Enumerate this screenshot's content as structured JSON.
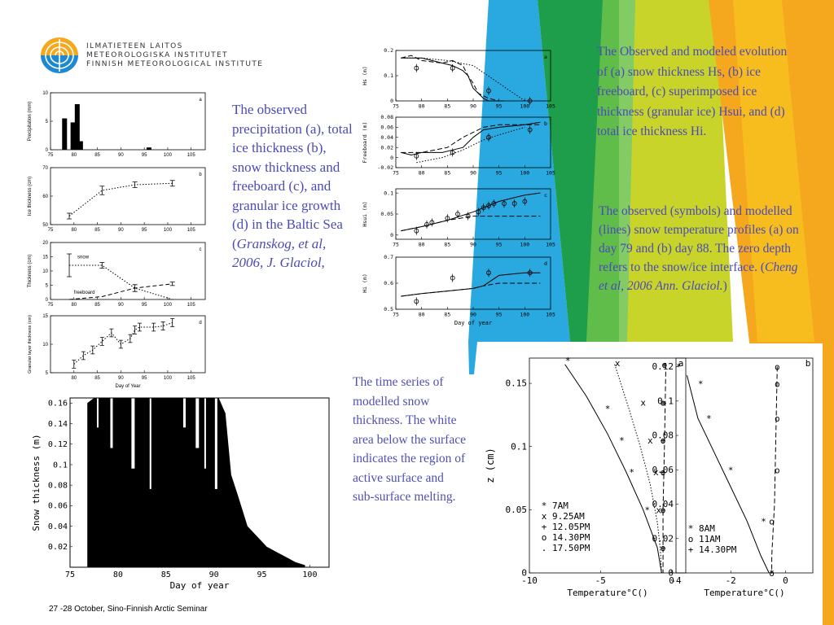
{
  "institute": {
    "name_fi": "ILMATIETEEN LAITOS",
    "name_sv": "METEOROLOGISKA INSTITUTET",
    "name_en": "FINNISH METEOROLOGICAL INSTITUTE"
  },
  "captions": {
    "left_main": "The observed precipitation (a), total ice thickness (b), snow thickness and freeboard (c), and granular ice growth (d) in the Baltic Sea (",
    "left_citation": "Granskog, et al, 2006, J. Glaciol",
    "left_tail": ",",
    "right_top": "The Observed and modeled evolution of (a) snow thickness Hs, (b) ice freeboard, (c) superimposed ice thickness (granular ice) Hsui, and (d) total ice thickness Hi.",
    "right_mid_main": "The observed (symbols) and modelled (lines) snow temperature profiles (a) on day 79 and (b) day 88. The zero depth refers to the snow/ice interface. (",
    "right_mid_citation": "Cheng et al, 2006 Ann. Glaciol.",
    "right_mid_tail": ")",
    "middle_bottom": "The time series of modelled snow thickness. The white area below the surface indicates the region of active surface and sub-surface melting."
  },
  "footer": "27 -28 October, Sino-Finnish Arctic Seminar",
  "colors": {
    "caption": "#4a4ab8",
    "bg_blue": "#2aa8e0",
    "bg_green": "#1e9e4a",
    "bg_lime": "#c8d42a",
    "bg_orange": "#f5a81e"
  },
  "chart_data": [
    {
      "id": "granskog_a",
      "type": "bar",
      "panel": "a",
      "ylabel": "Precipitation (mm)",
      "xlim": [
        75,
        108
      ],
      "ylim": [
        0,
        10
      ],
      "xticks": [
        75,
        80,
        85,
        90,
        95,
        100,
        105
      ],
      "yticks": [
        0,
        5,
        10
      ],
      "x": [
        78,
        79.8,
        80.7,
        81.4,
        96
      ],
      "values": [
        5.5,
        4.8,
        8,
        1.5,
        0.4
      ]
    },
    {
      "id": "granskog_b",
      "type": "line",
      "panel": "b",
      "ylabel": "Ice thickness (cm)",
      "xlim": [
        75,
        108
      ],
      "ylim": [
        50,
        70
      ],
      "xticks": [
        75,
        80,
        85,
        90,
        95,
        100,
        105
      ],
      "yticks": [
        50,
        60,
        70
      ],
      "x": [
        79,
        86,
        93,
        101
      ],
      "y": [
        53,
        62,
        64,
        64.5
      ],
      "err": [
        1,
        1.5,
        1,
        1
      ]
    },
    {
      "id": "granskog_c",
      "type": "line",
      "panel": "c",
      "ylabel": "Thickness (cm)",
      "xlim": [
        75,
        108
      ],
      "ylim": [
        0,
        20
      ],
      "xticks": [
        75,
        80,
        85,
        90,
        95,
        100,
        105
      ],
      "yticks": [
        0,
        5,
        10,
        15,
        20
      ],
      "series": [
        {
          "name": "snow",
          "x": [
            79,
            86,
            93,
            101
          ],
          "y": [
            12,
            12,
            4,
            0
          ]
        },
        {
          "name": "freeboard",
          "x": [
            79,
            86,
            93,
            101
          ],
          "y": [
            0,
            1,
            4,
            5.5
          ]
        }
      ],
      "annotations": [
        "snow",
        "freeboard"
      ]
    },
    {
      "id": "granskog_d",
      "type": "line",
      "panel": "d",
      "ylabel": "Granular layer thickness (cm)",
      "xlabel": "Day of Year",
      "xlim": [
        75,
        108
      ],
      "ylim": [
        5,
        15
      ],
      "xticks": [
        80,
        85,
        90,
        95,
        100,
        105
      ],
      "yticks": [
        5,
        10,
        15
      ],
      "x": [
        80,
        82,
        84,
        86,
        88,
        90,
        92,
        93,
        94,
        97,
        99,
        101
      ],
      "y": [
        6.5,
        8,
        9,
        10.5,
        12,
        10,
        11,
        12.5,
        13,
        13,
        13.2,
        13.8
      ]
    },
    {
      "id": "cheng_a",
      "type": "line",
      "panel": "a",
      "ylabel": "Hs (m)",
      "xlim": [
        75,
        105
      ],
      "ylim": [
        0,
        0.2
      ],
      "xticks": [
        75,
        80,
        85,
        90,
        95,
        100,
        105
      ],
      "yticks": [
        0,
        0.1,
        0.2
      ],
      "obs": {
        "x": [
          79,
          86,
          93,
          101
        ],
        "y": [
          0.13,
          0.13,
          0.04,
          0
        ]
      },
      "series": [
        {
          "x": [
            76,
            78,
            80,
            84,
            86,
            88,
            89,
            90,
            91,
            92,
            93,
            96
          ],
          "y": [
            0.17,
            0.17,
            0.17,
            0.15,
            0.14,
            0.12,
            0.1,
            0.05,
            0.03,
            0.01,
            0,
            0
          ]
        },
        {
          "x": [
            76,
            78,
            80,
            84,
            86,
            88,
            89,
            90,
            91,
            92,
            93,
            95
          ],
          "y": [
            0.17,
            0.18,
            0.16,
            0.15,
            0.16,
            0.14,
            0.1,
            0.07,
            0.03,
            0.02,
            0.01,
            0
          ]
        },
        {
          "x": [
            76,
            80,
            85,
            90,
            95,
            100
          ],
          "y": [
            0.17,
            0.17,
            0.16,
            0.14,
            0.07,
            0
          ]
        }
      ]
    },
    {
      "id": "cheng_b",
      "type": "line",
      "panel": "b",
      "ylabel": "Freeboard (m)",
      "xlim": [
        75,
        105
      ],
      "ylim": [
        -0.02,
        0.08
      ],
      "xticks": [
        75,
        80,
        85,
        90,
        95,
        100,
        105
      ],
      "yticks": [
        -0.02,
        0,
        0.02,
        0.04,
        0.06,
        0.08
      ],
      "obs": {
        "x": [
          79,
          86,
          93,
          101
        ],
        "y": [
          0.003,
          0.01,
          0.04,
          0.055
        ]
      },
      "series": [
        {
          "x": [
            76,
            78,
            80,
            84,
            86,
            88,
            89,
            90,
            92,
            95,
            100,
            103
          ],
          "y": [
            0.01,
            0.005,
            0.01,
            0.01,
            0.015,
            0.02,
            0.03,
            0.04,
            0.055,
            0.06,
            0.065,
            0.07
          ]
        },
        {
          "x": [
            76,
            80,
            85,
            88,
            90,
            92,
            95,
            100,
            103
          ],
          "y": [
            0.01,
            0.01,
            0.02,
            0.04,
            0.05,
            0.06,
            0.065,
            0.065,
            0.065
          ]
        },
        {
          "x": [
            79,
            84,
            88,
            92,
            95,
            100
          ],
          "y": [
            -0.01,
            0,
            0.015,
            0.035,
            0.045,
            0.06
          ]
        }
      ]
    },
    {
      "id": "cheng_c",
      "type": "line",
      "panel": "c",
      "ylabel": "Hsui (m)",
      "xlim": [
        75,
        105
      ],
      "ylim": [
        -0.01,
        0.11
      ],
      "xticks": [
        75,
        80,
        85,
        90,
        95,
        100,
        105
      ],
      "yticks": [
        0,
        0.05,
        0.1
      ],
      "obs": {
        "x": [
          79,
          81,
          82,
          85,
          87,
          89,
          91,
          92,
          93,
          94,
          96,
          98,
          100
        ],
        "y": [
          0.01,
          0.025,
          0.03,
          0.04,
          0.05,
          0.045,
          0.055,
          0.065,
          0.07,
          0.075,
          0.075,
          0.075,
          0.08
        ]
      },
      "series": [
        {
          "x": [
            76,
            80,
            85,
            90,
            92,
            95,
            100,
            103
          ],
          "y": [
            0.01,
            0.02,
            0.035,
            0.055,
            0.065,
            0.08,
            0.095,
            0.1
          ]
        },
        {
          "x": [
            76,
            80,
            85,
            90,
            95,
            100,
            103
          ],
          "y": [
            0.01,
            0.02,
            0.035,
            0.045,
            0.045,
            0.045,
            0.045
          ]
        }
      ]
    },
    {
      "id": "cheng_d",
      "type": "line",
      "panel": "d",
      "ylabel": "Hi (m)",
      "xlabel": "Day of year",
      "xlim": [
        75,
        105
      ],
      "ylim": [
        0.5,
        0.7
      ],
      "xticks": [
        75,
        80,
        85,
        90,
        95,
        100,
        105
      ],
      "yticks": [
        0.5,
        0.6,
        0.7
      ],
      "obs": {
        "x": [
          79,
          86,
          93,
          101
        ],
        "y": [
          0.53,
          0.62,
          0.64,
          0.64
        ]
      },
      "series": [
        {
          "x": [
            76,
            80,
            85,
            90,
            92,
            95,
            100,
            103
          ],
          "y": [
            0.55,
            0.56,
            0.57,
            0.58,
            0.59,
            0.63,
            0.64,
            0.64
          ]
        },
        {
          "x": [
            76,
            80,
            85,
            90,
            92,
            95,
            100,
            103
          ],
          "y": [
            0.55,
            0.56,
            0.57,
            0.58,
            0.59,
            0.6,
            0.6,
            0.6
          ]
        }
      ]
    },
    {
      "id": "snow_series",
      "type": "area",
      "ylabel": "Snow thickness (m)",
      "xlabel": "Day of year",
      "xlim": [
        75,
        102
      ],
      "ylim": [
        0,
        0.165
      ],
      "xticks": [
        75,
        80,
        85,
        90,
        95,
        100
      ],
      "yticks": [
        0.02,
        0.04,
        0.06,
        0.08,
        0.1,
        0.12,
        0.14,
        0.16
      ],
      "x": [
        76.8,
        77.5,
        78.5,
        80,
        82,
        85,
        87,
        88.5,
        89.5,
        90.5,
        91.2,
        91.8,
        92.5,
        93.5,
        94.5,
        95.5,
        96.5,
        97.5,
        98.5,
        99.5
      ],
      "y": [
        0.16,
        0.165,
        0.165,
        0.165,
        0.165,
        0.165,
        0.165,
        0.165,
        0.165,
        0.165,
        0.15,
        0.09,
        0.07,
        0.04,
        0.03,
        0.02,
        0.015,
        0.01,
        0.005,
        0.002
      ]
    },
    {
      "id": "temp_profile_a",
      "type": "scatter",
      "panel": "a",
      "ylabel": "z (cm)",
      "xlabel": "Temperature°C()",
      "xlim": [
        -10,
        1
      ],
      "ylim": [
        0,
        0.17
      ],
      "xticks": [
        -10,
        -5,
        0
      ],
      "yticks": [
        0,
        0.05,
        0.1,
        0.15
      ],
      "legend": [
        "7AM",
        "9.25AM",
        "12.05PM",
        "14.30PM",
        "17.50PM"
      ]
    },
    {
      "id": "temp_profile_b",
      "type": "scatter",
      "panel": "b",
      "xlabel": "Temperature°C()",
      "xlim": [
        -4,
        1
      ],
      "ylim": [
        0,
        0.125
      ],
      "xticks": [
        -4,
        -2,
        0
      ],
      "yticks": [
        0,
        0.02,
        0.04,
        0.06,
        0.08,
        0.1,
        0.12
      ],
      "legend": [
        "8AM",
        "11AM",
        "14.30PM"
      ]
    }
  ]
}
